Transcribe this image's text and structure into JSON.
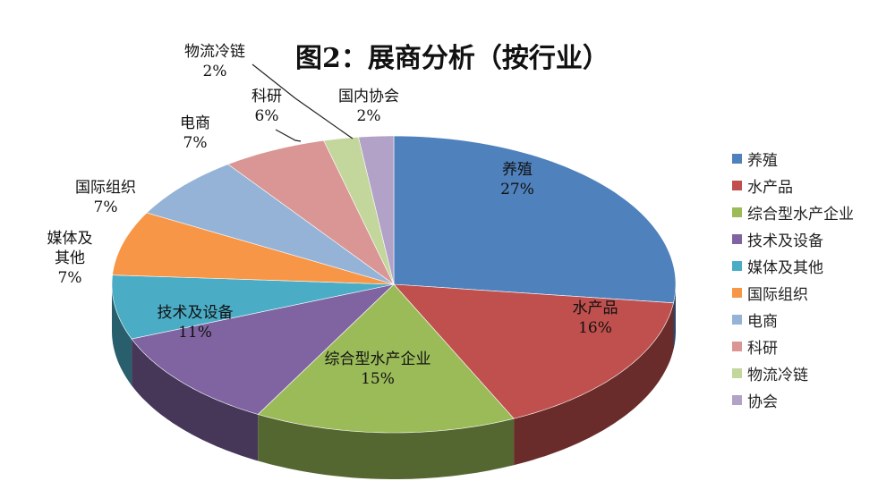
{
  "chart_data": {
    "type": "pie",
    "title": "图2：展商分析（按行业）",
    "legend_position": "right",
    "style": "3d",
    "slices": [
      {
        "name": "养殖",
        "label": "养殖",
        "value": 27,
        "pct_label": "27%",
        "color": "#4F81BD"
      },
      {
        "name": "水产品",
        "label": "水产品",
        "value": 16,
        "pct_label": "16%",
        "color": "#C0504D"
      },
      {
        "name": "综合型水产企业",
        "label": "综合型水产企业",
        "value": 15,
        "pct_label": "15%",
        "color": "#9BBB59"
      },
      {
        "name": "技术及设备",
        "label": "技术及设备",
        "value": 11,
        "pct_label": "11%",
        "color": "#8064A2"
      },
      {
        "name": "媒体及其他",
        "label": "媒体及\n其他",
        "value": 7,
        "pct_label": "7%",
        "color": "#4BACC6"
      },
      {
        "name": "国际组织",
        "label": "国际组织",
        "value": 7,
        "pct_label": "7%",
        "color": "#F79646"
      },
      {
        "name": "电商",
        "label": "电商",
        "value": 7,
        "pct_label": "7%",
        "color": "#95B3D7"
      },
      {
        "name": "科研",
        "label": "科研",
        "value": 6,
        "pct_label": "6%",
        "color": "#D99694"
      },
      {
        "name": "物流冷链",
        "label": "物流冷链",
        "value": 2,
        "pct_label": "2%",
        "color": "#C3D69B"
      },
      {
        "name": "协会",
        "label": "国内协会",
        "value": 2,
        "pct_label": "2%",
        "color": "#B2A2C7"
      }
    ]
  }
}
